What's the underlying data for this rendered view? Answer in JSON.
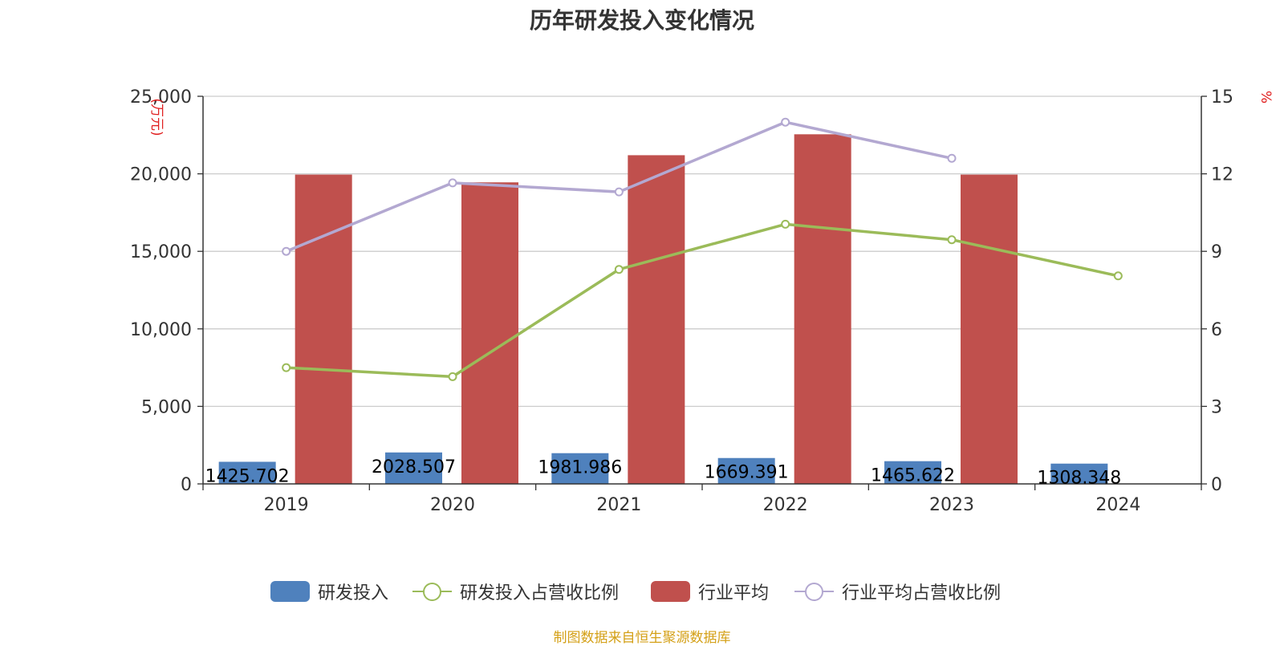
{
  "chart_data": {
    "type": "bar",
    "title": "历年研发投入变化情况",
    "ylabel_left": "(万元)",
    "ylabel_right": "%",
    "categories": [
      "2019",
      "2020",
      "2021",
      "2022",
      "2023",
      "2024"
    ],
    "ylim_left": [
      0,
      25000
    ],
    "ylim_right": [
      0,
      15
    ],
    "yticks_left": [
      "0",
      "5,000",
      "10,000",
      "15,000",
      "20,000",
      "25,000"
    ],
    "yticks_right": [
      "0",
      "3",
      "6",
      "9",
      "12",
      "15"
    ],
    "grid": true,
    "legend_position": "bottom",
    "series": [
      {
        "name": "研发投入",
        "type": "bar",
        "axis": "left",
        "color": "#4f81bd",
        "values": [
          1425.702,
          2028.507,
          1981.986,
          1669.391,
          1465.622,
          1308.348
        ],
        "labels": [
          "1425.702",
          "2028.507",
          "1981.986",
          "1669.391",
          "1465.622",
          "1308.348"
        ]
      },
      {
        "name": "研发投入占营收比例",
        "type": "line",
        "axis": "right",
        "color": "#9bbb59",
        "values": [
          4.5,
          4.15,
          8.3,
          10.05,
          9.45,
          8.05
        ]
      },
      {
        "name": "行业平均",
        "type": "bar",
        "axis": "left",
        "color": "#c0504d",
        "values": [
          19950,
          19450,
          21200,
          22550,
          19950,
          null
        ]
      },
      {
        "name": "行业平均占营收比例",
        "type": "line",
        "axis": "right",
        "color": "#b3a8d1",
        "values": [
          9.0,
          11.65,
          11.3,
          14.0,
          12.6,
          null
        ]
      }
    ]
  },
  "source_note": "制图数据来自恒生聚源数据库"
}
